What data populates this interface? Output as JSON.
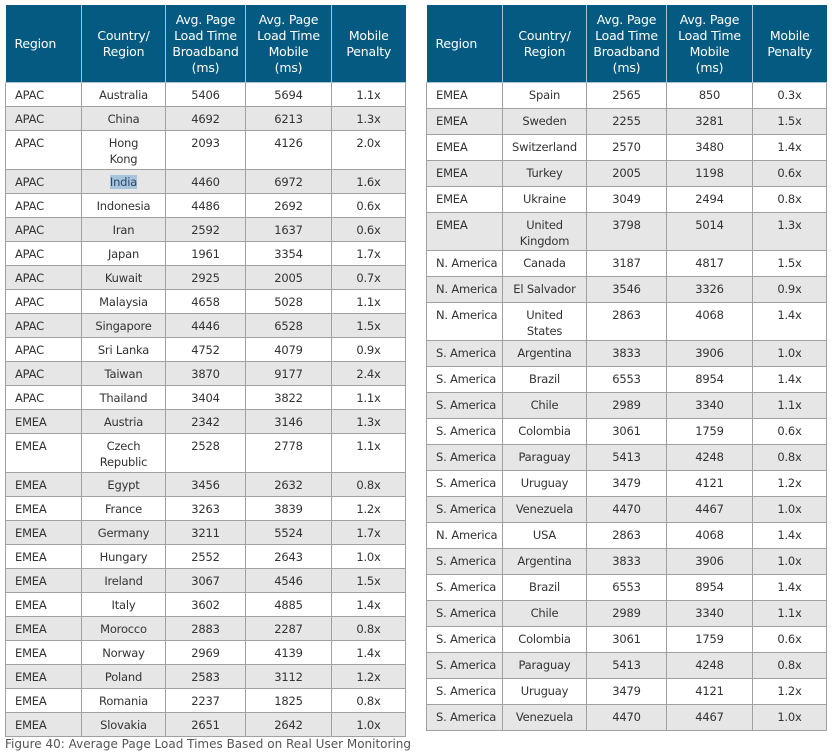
{
  "headers": [
    "Region",
    "Country/\nRegion",
    "Avg. Page\nLoad Time\nBroadband\n(ms)",
    "Avg. Page\nLoad Time\nMobile\n(ms)",
    "Mobile\nPenalty"
  ],
  "colors": {
    "header_bg": "#045a80",
    "row_alt": "#e6e6e6",
    "selection": "#a7c4dc"
  },
  "selected_text": "India",
  "left_table": [
    [
      "APAC",
      "Australia",
      "5406",
      "5694",
      "1.1x"
    ],
    [
      "APAC",
      "China",
      "4692",
      "6213",
      "1.3x"
    ],
    [
      "APAC",
      "Hong\nKong",
      "2093",
      "4126",
      "2.0x"
    ],
    [
      "APAC",
      "India",
      "4460",
      "6972",
      "1.6x"
    ],
    [
      "APAC",
      "Indonesia",
      "4486",
      "2692",
      "0.6x"
    ],
    [
      "APAC",
      "Iran",
      "2592",
      "1637",
      "0.6x"
    ],
    [
      "APAC",
      "Japan",
      "1961",
      "3354",
      "1.7x"
    ],
    [
      "APAC",
      "Kuwait",
      "2925",
      "2005",
      "0.7x"
    ],
    [
      "APAC",
      "Malaysia",
      "4658",
      "5028",
      "1.1x"
    ],
    [
      "APAC",
      "Singapore",
      "4446",
      "6528",
      "1.5x"
    ],
    [
      "APAC",
      "Sri Lanka",
      "4752",
      "4079",
      "0.9x"
    ],
    [
      "APAC",
      "Taiwan",
      "3870",
      "9177",
      "2.4x"
    ],
    [
      "APAC",
      "Thailand",
      "3404",
      "3822",
      "1.1x"
    ],
    [
      "EMEA",
      "Austria",
      "2342",
      "3146",
      "1.3x"
    ],
    [
      "EMEA",
      "Czech\nRepublic",
      "2528",
      "2778",
      "1.1x"
    ],
    [
      "EMEA",
      "Egypt",
      "3456",
      "2632",
      "0.8x"
    ],
    [
      "EMEA",
      "France",
      "3263",
      "3839",
      "1.2x"
    ],
    [
      "EMEA",
      "Germany",
      "3211",
      "5524",
      "1.7x"
    ],
    [
      "EMEA",
      "Hungary",
      "2552",
      "2643",
      "1.0x"
    ],
    [
      "EMEA",
      "Ireland",
      "3067",
      "4546",
      "1.5x"
    ],
    [
      "EMEA",
      "Italy",
      "3602",
      "4885",
      "1.4x"
    ],
    [
      "EMEA",
      "Morocco",
      "2883",
      "2287",
      "0.8x"
    ],
    [
      "EMEA",
      "Norway",
      "2969",
      "4139",
      "1.4x"
    ],
    [
      "EMEA",
      "Poland",
      "2583",
      "3112",
      "1.2x"
    ],
    [
      "EMEA",
      "Romania",
      "2237",
      "1825",
      "0.8x"
    ],
    [
      "EMEA",
      "Slovakia",
      "2651",
      "2642",
      "1.0x"
    ]
  ],
  "right_table": [
    [
      "EMEA",
      "Spain",
      "2565",
      "850",
      "0.3x"
    ],
    [
      "EMEA",
      "Sweden",
      "2255",
      "3281",
      "1.5x"
    ],
    [
      "EMEA",
      "Switzerland",
      "2570",
      "3480",
      "1.4x"
    ],
    [
      "EMEA",
      "Turkey",
      "2005",
      "1198",
      "0.6x"
    ],
    [
      "EMEA",
      "Ukraine",
      "3049",
      "2494",
      "0.8x"
    ],
    [
      "EMEA",
      "United\nKingdom",
      "3798",
      "5014",
      "1.3x"
    ],
    [
      "N. America",
      "Canada",
      "3187",
      "4817",
      "1.5x"
    ],
    [
      "N. America",
      "El Salvador",
      "3546",
      "3326",
      "0.9x"
    ],
    [
      "N. America",
      "United\nStates",
      "2863",
      "4068",
      "1.4x"
    ],
    [
      "S. America",
      "Argentina",
      "3833",
      "3906",
      "1.0x"
    ],
    [
      "S. America",
      "Brazil",
      "6553",
      "8954",
      "1.4x"
    ],
    [
      "S. America",
      "Chile",
      "2989",
      "3340",
      "1.1x"
    ],
    [
      "S. America",
      "Colombia",
      "3061",
      "1759",
      "0.6x"
    ],
    [
      "S. America",
      "Paraguay",
      "5413",
      "4248",
      "0.8x"
    ],
    [
      "S. America",
      "Uruguay",
      "3479",
      "4121",
      "1.2x"
    ],
    [
      "S. America",
      "Venezuela",
      "4470",
      "4467",
      "1.0x"
    ],
    [
      "N. America",
      "USA",
      "2863",
      "4068",
      "1.4x"
    ],
    [
      "S. America",
      "Argentina",
      "3833",
      "3906",
      "1.0x"
    ],
    [
      "S. America",
      "Brazil",
      "6553",
      "8954",
      "1.4x"
    ],
    [
      "S. America",
      "Chile",
      "2989",
      "3340",
      "1.1x"
    ],
    [
      "S. America",
      "Colombia",
      "3061",
      "1759",
      "0.6x"
    ],
    [
      "S. America",
      "Paraguay",
      "5413",
      "4248",
      "0.8x"
    ],
    [
      "S. America",
      "Uruguay",
      "3479",
      "4121",
      "1.2x"
    ],
    [
      "S. America",
      "Venezuela",
      "4470",
      "4467",
      "1.0x"
    ]
  ],
  "caption": "Figure 40: Average Page Load Times Based on Real User Monitoring"
}
